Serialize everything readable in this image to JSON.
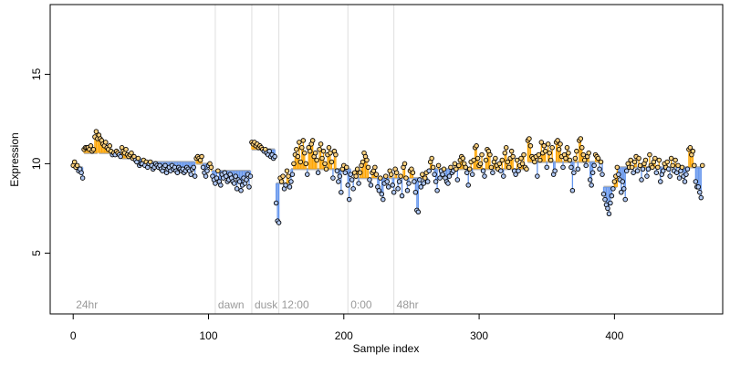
{
  "chart_data": {
    "type": "scatter",
    "xlabel": "Sample index",
    "ylabel": "Expression",
    "xlim": [
      -17,
      480
    ],
    "ylim": [
      1.6,
      18.9
    ],
    "x_ticks": [
      0,
      100,
      200,
      300,
      400
    ],
    "y_ticks": [
      5,
      10,
      15
    ],
    "grid": false,
    "annotations": [
      {
        "x": 0,
        "label": "24hr",
        "line": false
      },
      {
        "x": 105,
        "label": "dawn",
        "line": true
      },
      {
        "x": 132,
        "label": "dusk",
        "line": true
      },
      {
        "x": 152,
        "label": "12:00",
        "line": true
      },
      {
        "x": 203,
        "label": "0:00",
        "line": true
      },
      {
        "x": 237,
        "label": "48hr",
        "line": true
      }
    ],
    "colors": {
      "fitted_line": "#b3b3b3",
      "residual_above": "#ffa500",
      "residual_below": "#6495ed",
      "point_fill_above": "#ffd27f",
      "point_fill_below": "#b0c8f4",
      "point_stroke": "#000000",
      "annotation_line": "#dedede",
      "annotation_text": "#9a9a9a"
    },
    "segments": [
      {
        "x_range": [
          0,
          7
        ],
        "fit": 9.8,
        "values": [
          9.9,
          10.1,
          9.8,
          9.9,
          9.6,
          9.7,
          9.5,
          9.2
        ]
      },
      {
        "x_range": [
          8,
          18
        ],
        "fit": 10.6,
        "values": [
          10.8,
          10.9,
          10.9,
          10.9,
          10.8,
          11.0,
          10.7,
          10.8,
          11.5,
          11.8,
          11.4
        ]
      },
      {
        "x_range": [
          19,
          35
        ],
        "fit": 10.6,
        "values": [
          11.6,
          11.4,
          11.3,
          11.1,
          11.0,
          11.2,
          10.9,
          10.8,
          11.0,
          10.7,
          10.5,
          10.6,
          10.5,
          10.7,
          10.6,
          10.5,
          10.4
        ]
      },
      {
        "x_range": [
          36,
          50
        ],
        "fit": 10.3,
        "values": [
          10.9,
          10.7,
          10.6,
          10.8,
          10.5,
          10.4,
          10.5,
          10.6,
          10.3,
          10.4,
          10.2,
          10.1,
          10.3,
          9.9,
          10.0
        ]
      },
      {
        "x_range": [
          51,
          90
        ],
        "fit": 10.1,
        "values": [
          10.0,
          10.2,
          9.9,
          10.1,
          9.8,
          10.0,
          10.1,
          9.9,
          9.7,
          9.8,
          10.0,
          9.9,
          9.8,
          9.9,
          9.7,
          9.6,
          9.8,
          9.9,
          9.5,
          9.7,
          9.8,
          9.6,
          9.9,
          9.7,
          9.8,
          9.6,
          9.5,
          9.8,
          9.7,
          9.6,
          9.7,
          9.5,
          9.6,
          9.8,
          9.7,
          9.6,
          9.4,
          9.7,
          9.8,
          9.3
        ]
      },
      {
        "x_range": [
          91,
          101
        ],
        "fit": 10.0,
        "values": [
          10.3,
          10.4,
          10.3,
          10.2,
          10.4,
          9.8,
          9.5,
          9.3,
          9.6,
          9.9,
          10.0
        ]
      },
      {
        "x_range": [
          102,
          131
        ],
        "fit": 9.6,
        "values": [
          9.8,
          9.3,
          9.1,
          8.9,
          9.2,
          9.6,
          9.0,
          8.8,
          9.4,
          9.2,
          9.5,
          9.3,
          9.0,
          9.1,
          9.4,
          9.2,
          9.0,
          8.9,
          9.3,
          8.6,
          9.1,
          9.0,
          8.5,
          8.8,
          9.2,
          8.9,
          9.1,
          9.4,
          8.7,
          9.3
        ]
      },
      {
        "x_range": [
          132,
          149
        ],
        "fit": 10.8,
        "values": [
          11.2,
          11.1,
          11.2,
          11.0,
          11.1,
          10.9,
          11.0,
          10.9,
          10.8,
          10.7,
          10.8,
          10.6,
          10.5,
          10.7,
          10.4,
          10.5,
          10.3,
          10.4
        ]
      },
      {
        "x_range": [
          150,
          160
        ],
        "fit": 8.9,
        "values": [
          7.8,
          6.8,
          6.7,
          9.2,
          9.0,
          9.3,
          8.6,
          8.8,
          9.6,
          9.3,
          8.7
        ]
      },
      {
        "x_range": [
          161,
          205
        ],
        "fit": 9.7,
        "values": [
          9.0,
          9.4,
          10.0,
          10.5,
          10.8,
          10.4,
          11.2,
          10.1,
          10.9,
          11.3,
          10.6,
          10.0,
          9.4,
          10.9,
          10.7,
          11.1,
          11.3,
          10.4,
          10.6,
          10.2,
          9.5,
          10.8,
          11.1,
          10.3,
          10.7,
          10.0,
          9.7,
          10.5,
          10.9,
          10.6,
          10.1,
          9.2,
          10.7,
          10.5,
          9.6,
          9.0,
          9.3,
          8.4,
          9.7,
          9.9,
          9.5,
          9.8,
          8.8,
          8.0,
          9.4
        ]
      },
      {
        "x_range": [
          206,
          262
        ],
        "fit": 9.2,
        "values": [
          9.1,
          8.6,
          9.5,
          9.3,
          9.7,
          8.9,
          9.5,
          9.9,
          10.1,
          10.6,
          10.4,
          10.2,
          9.8,
          9.1,
          8.8,
          9.5,
          9.6,
          9.8,
          9.4,
          8.7,
          8.5,
          9.2,
          8.3,
          8.0,
          8.9,
          9.3,
          9.0,
          8.7,
          9.6,
          9.4,
          8.8,
          8.4,
          9.7,
          9.5,
          8.6,
          9.0,
          9.3,
          8.2,
          9.8,
          10.0,
          9.2,
          8.5,
          8.9,
          9.6,
          9.7,
          9.5,
          9.0,
          8.4,
          7.4,
          7.3,
          9.1,
          8.7,
          9.4,
          8.9,
          9.2,
          9.5,
          9.0
        ]
      },
      {
        "x_range": [
          263,
          335
        ],
        "fit": 9.7,
        "values": [
          9.6,
          10.1,
          10.3,
          9.8,
          9.4,
          9.0,
          8.5,
          9.9,
          9.2,
          9.6,
          9.4,
          9.7,
          9.2,
          9.0,
          8.9,
          9.3,
          9.8,
          9.5,
          9.6,
          10.0,
          9.7,
          9.1,
          9.9,
          10.2,
          10.4,
          10.3,
          10.0,
          9.8,
          9.5,
          8.8,
          9.7,
          10.1,
          9.4,
          10.2,
          10.9,
          11.0,
          10.3,
          9.9,
          10.0,
          10.5,
          9.6,
          9.3,
          10.2,
          10.8,
          10.7,
          10.5,
          9.8,
          9.5,
          10.1,
          10.3,
          9.9,
          9.7,
          10.0,
          9.6,
          10.2,
          9.3,
          10.6,
          10.9,
          10.1,
          9.8,
          10.3,
          10.7,
          10.4,
          9.6,
          9.4,
          10.2,
          9.6,
          9.9,
          10.3,
          10.0,
          10.5,
          9.8,
          9.7
        ]
      },
      {
        "x_range": [
          336,
          391
        ],
        "fit": 10.1,
        "values": [
          11.3,
          11.4,
          11.0,
          10.4,
          10.3,
          10.1,
          10.4,
          9.3,
          10.5,
          10.2,
          11.2,
          10.6,
          11.0,
          10.7,
          9.8,
          11.1,
          10.6,
          10.2,
          10.9,
          9.4,
          9.6,
          11.2,
          11.3,
          10.8,
          11.1,
          10.4,
          9.8,
          10.5,
          10.3,
          10.9,
          10.6,
          10.2,
          9.8,
          8.5,
          9.5,
          10.3,
          10.7,
          9.7,
          11.3,
          11.4,
          10.9,
          10.5,
          10.2,
          9.9,
          10.4,
          10.6,
          9.1,
          8.8,
          9.5,
          9.9,
          10.5,
          10.4,
          10.3,
          9.7,
          10.1,
          9.4
        ]
      },
      {
        "x_range": [
          392,
          402
        ],
        "fit": 8.7,
        "values": [
          8.3,
          8.0,
          7.7,
          7.5,
          7.2,
          7.8,
          8.2,
          8.6,
          9.0,
          9.3,
          9.8
        ]
      },
      {
        "x_range": [
          403,
          465
        ],
        "fit": 9.8,
        "values": [
          9.4,
          9.1,
          8.4,
          9.0,
          8.6,
          8.0,
          9.6,
          10.0,
          9.8,
          10.2,
          9.8,
          9.5,
          10.1,
          10.4,
          9.6,
          10.3,
          9.9,
          9.1,
          9.7,
          10.0,
          10.2,
          9.3,
          9.7,
          10.5,
          9.9,
          9.8,
          10.1,
          10.3,
          9.5,
          9.8,
          10.2,
          9.0,
          9.4,
          9.6,
          10.0,
          9.8,
          10.1,
          9.7,
          9.3,
          10.3,
          9.9,
          9.6,
          10.2,
          9.5,
          9.9,
          9.2,
          9.6,
          9.8,
          9.3,
          9.0,
          9.4,
          9.7,
          10.8,
          10.9,
          10.5,
          10.7,
          9.9,
          9.0,
          8.7,
          8.7,
          8.4,
          8.1,
          9.9
        ]
      }
    ]
  }
}
